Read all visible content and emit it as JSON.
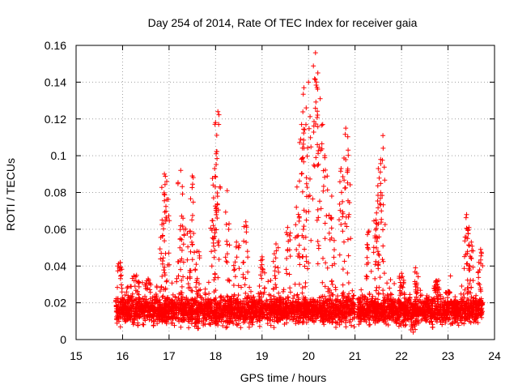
{
  "chart_data": {
    "type": "scatter",
    "title": "Day 254 of 2014, Rate Of TEC Index for receiver gaia",
    "xlabel": "GPS time / hours",
    "ylabel": "ROTI / TECUs",
    "xlim": [
      15,
      24
    ],
    "ylim": [
      0,
      0.16
    ],
    "xticks": [
      "15",
      "16",
      "17",
      "18",
      "19",
      "20",
      "21",
      "22",
      "23",
      "24"
    ],
    "yticks": [
      "0",
      "0.02",
      "0.04",
      "0.06",
      "0.08",
      "0.1",
      "0.12",
      "0.14",
      "0.16"
    ],
    "grid": true,
    "marker": "+",
    "color": "#ff0000",
    "series": [
      {
        "name": "ROTI",
        "segments": [
          {
            "t0": 15.85,
            "t1": 21.0,
            "baseline": 0.016,
            "spread": 0.011,
            "n": 2400
          },
          {
            "t0": 21.05,
            "t1": 23.75,
            "baseline": 0.016,
            "spread": 0.011,
            "n": 1300
          }
        ],
        "peaks": [
          {
            "x": 15.95,
            "y": 0.042
          },
          {
            "x": 16.3,
            "y": 0.035
          },
          {
            "x": 16.55,
            "y": 0.033
          },
          {
            "x": 16.85,
            "y": 0.065
          },
          {
            "x": 16.9,
            "y": 0.09
          },
          {
            "x": 16.95,
            "y": 0.086
          },
          {
            "x": 17.25,
            "y": 0.092
          },
          {
            "x": 17.3,
            "y": 0.066
          },
          {
            "x": 17.45,
            "y": 0.059
          },
          {
            "x": 17.5,
            "y": 0.089
          },
          {
            "x": 17.6,
            "y": 0.048
          },
          {
            "x": 17.95,
            "y": 0.062
          },
          {
            "x": 18.0,
            "y": 0.118
          },
          {
            "x": 18.05,
            "y": 0.124
          },
          {
            "x": 17.98,
            "y": 0.093
          },
          {
            "x": 18.25,
            "y": 0.081
          },
          {
            "x": 18.45,
            "y": 0.053
          },
          {
            "x": 18.65,
            "y": 0.064
          },
          {
            "x": 19.0,
            "y": 0.045
          },
          {
            "x": 19.3,
            "y": 0.052
          },
          {
            "x": 19.55,
            "y": 0.061
          },
          {
            "x": 19.75,
            "y": 0.083
          },
          {
            "x": 19.85,
            "y": 0.117
          },
          {
            "x": 19.9,
            "y": 0.137
          },
          {
            "x": 19.95,
            "y": 0.126
          },
          {
            "x": 20.0,
            "y": 0.14
          },
          {
            "x": 20.15,
            "y": 0.156
          },
          {
            "x": 20.2,
            "y": 0.145
          },
          {
            "x": 20.25,
            "y": 0.131
          },
          {
            "x": 20.35,
            "y": 0.1
          },
          {
            "x": 20.5,
            "y": 0.078
          },
          {
            "x": 20.7,
            "y": 0.093
          },
          {
            "x": 20.8,
            "y": 0.115
          },
          {
            "x": 20.85,
            "y": 0.103
          },
          {
            "x": 21.3,
            "y": 0.059
          },
          {
            "x": 21.45,
            "y": 0.065
          },
          {
            "x": 21.5,
            "y": 0.093
          },
          {
            "x": 21.55,
            "y": 0.098
          },
          {
            "x": 21.6,
            "y": 0.111
          },
          {
            "x": 22.0,
            "y": 0.036
          },
          {
            "x": 22.3,
            "y": 0.039
          },
          {
            "x": 22.75,
            "y": 0.032
          },
          {
            "x": 23.0,
            "y": 0.026
          },
          {
            "x": 23.4,
            "y": 0.068
          },
          {
            "x": 23.45,
            "y": 0.061
          },
          {
            "x": 23.5,
            "y": 0.053
          },
          {
            "x": 23.7,
            "y": 0.049
          },
          {
            "x": 22.25,
            "y": 0.004
          }
        ]
      }
    ]
  }
}
